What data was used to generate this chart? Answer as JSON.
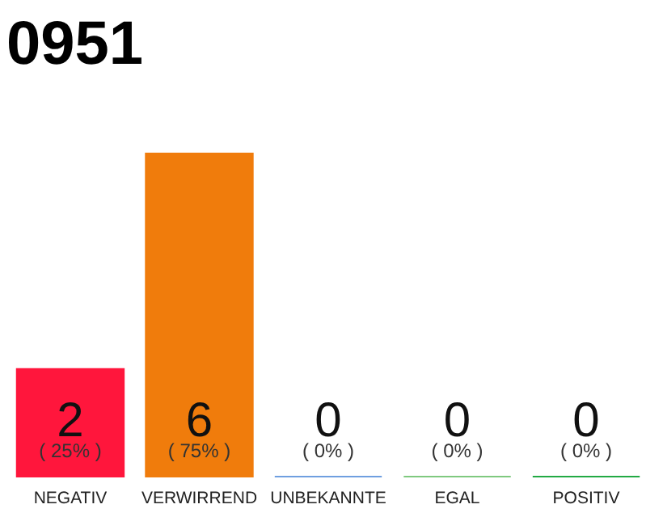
{
  "chart_data": {
    "type": "bar",
    "title": "0951",
    "categories": [
      "NEGATIV",
      "VERWIRREND",
      "UNBEKANNTE",
      "EGAL",
      "POSITIV"
    ],
    "values": [
      2,
      6,
      0,
      0,
      0
    ],
    "colors": [
      "#ff163c",
      "#f07c0c",
      "#6f9fe0",
      "#7fc97f",
      "#22aa44"
    ],
    "ylim": [
      0,
      6
    ],
    "tick_labels": "x",
    "data_labels": true,
    "annotations": [
      "( 25% )",
      "( 75% )",
      "( 0% )",
      "( 0% )",
      "( 0% )"
    ]
  }
}
